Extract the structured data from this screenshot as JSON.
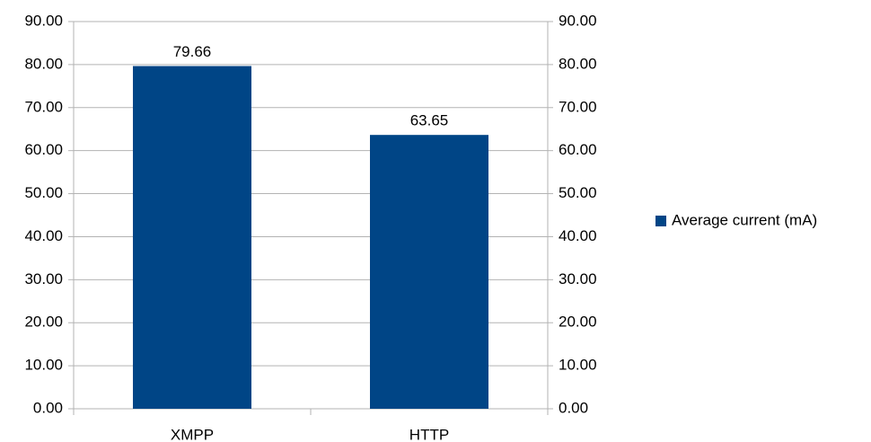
{
  "chart_data": {
    "type": "bar",
    "categories": [
      "XMPP",
      "HTTP"
    ],
    "series": [
      {
        "name": "Average current (mA)",
        "color": "#004586",
        "values": [
          79.66,
          63.65
        ]
      }
    ],
    "ylim": [
      0,
      90
    ],
    "yticks": [
      {
        "value": 0,
        "label": "0.00"
      },
      {
        "value": 10,
        "label": "10.00"
      },
      {
        "value": 20,
        "label": "20.00"
      },
      {
        "value": 30,
        "label": "30.00"
      },
      {
        "value": 40,
        "label": "40.00"
      },
      {
        "value": 50,
        "label": "50.00"
      },
      {
        "value": 60,
        "label": "60.00"
      },
      {
        "value": 70,
        "label": "70.00"
      },
      {
        "value": 80,
        "label": "80.00"
      },
      {
        "value": 90,
        "label": "90.00"
      }
    ],
    "y2lim": [
      0,
      90
    ],
    "y2ticks": [
      {
        "value": 0,
        "label": "0.00"
      },
      {
        "value": 10,
        "label": "10.00"
      },
      {
        "value": 20,
        "label": "20.00"
      },
      {
        "value": 30,
        "label": "30.00"
      },
      {
        "value": 40,
        "label": "40.00"
      },
      {
        "value": 50,
        "label": "50.00"
      },
      {
        "value": 60,
        "label": "60.00"
      },
      {
        "value": 70,
        "label": "70.00"
      },
      {
        "value": 80,
        "label": "80.00"
      },
      {
        "value": 90,
        "label": "90.00"
      }
    ],
    "grid": true,
    "legend": "right"
  }
}
